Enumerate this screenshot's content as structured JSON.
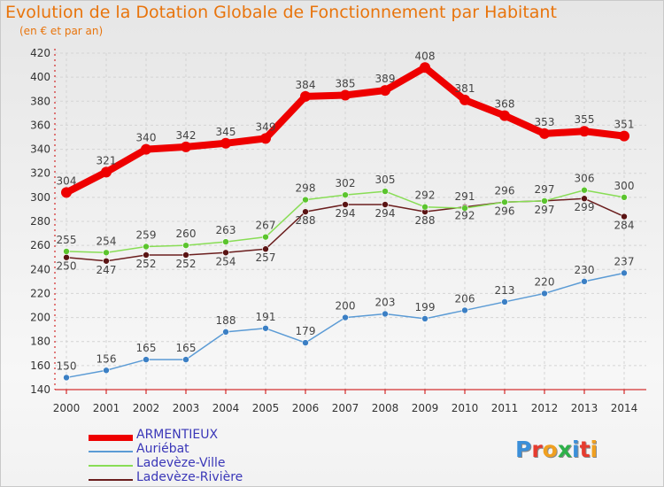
{
  "header": {
    "title": "Evolution de la Dotation Globale de Fonctionnement par Habitant",
    "subtitle": "(en € et par an)"
  },
  "logo": {
    "text": "Proxiti"
  },
  "chart_data": {
    "type": "line",
    "title": "Evolution de la Dotation Globale de Fonctionnement par Habitant",
    "subtitle": "(en € et par an)",
    "xlabel": "",
    "ylabel": "",
    "x": [
      "2000",
      "2001",
      "2002",
      "2003",
      "2004",
      "2005",
      "2006",
      "2007",
      "2008",
      "2009",
      "2010",
      "2011",
      "2012",
      "2013",
      "2014"
    ],
    "ylim": [
      140,
      420
    ],
    "yticks": [
      140,
      160,
      180,
      200,
      220,
      240,
      260,
      280,
      300,
      320,
      340,
      360,
      380,
      400,
      420
    ],
    "grid": true,
    "legend_position": "bottom-left",
    "series": [
      {
        "name": "ARMENTIEUX",
        "color": "#ee0000",
        "values": [
          304,
          321,
          340,
          342,
          345,
          349,
          384,
          385,
          389,
          408,
          381,
          368,
          353,
          355,
          351
        ]
      },
      {
        "name": "Auriébat",
        "color": "#5b9bd5",
        "values": [
          150,
          156,
          165,
          165,
          188,
          191,
          179,
          200,
          203,
          199,
          206,
          213,
          220,
          230,
          237
        ]
      },
      {
        "name": "Ladevèze-Ville",
        "color": "#88dd55",
        "values": [
          255,
          254,
          259,
          260,
          263,
          267,
          298,
          302,
          305,
          292,
          291,
          296,
          297,
          306,
          300
        ]
      },
      {
        "name": "Ladevèze-Rivière",
        "color": "#6b1e1e",
        "values": [
          250,
          247,
          252,
          252,
          254,
          257,
          288,
          294,
          294,
          288,
          292,
          296,
          297,
          299,
          284
        ]
      }
    ]
  }
}
